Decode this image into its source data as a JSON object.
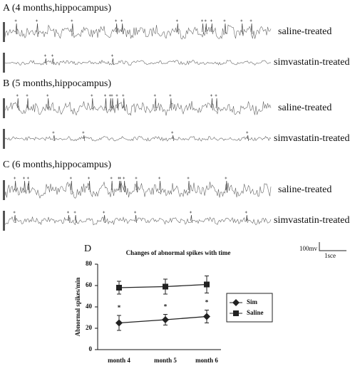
{
  "panels": [
    {
      "label": "A (4 months,hippocampus)",
      "traces": [
        "saline-treated",
        "simvastatin-treated"
      ]
    },
    {
      "label": "B (5 months,hippocampus)",
      "traces": [
        "saline-treated",
        "simvastatin-treated"
      ]
    },
    {
      "label": "C (6 months,hippocampus)",
      "traces": [
        "saline-treated",
        "simvastatin-treated"
      ]
    }
  ],
  "scale_bar": {
    "voltage": "100mv",
    "time": "1sce"
  },
  "chart_data": {
    "type": "line",
    "panel_label": "D",
    "title": "Changes of abnormal spikes with time",
    "y_label": "Abnormal spikes/min",
    "categories": [
      "month 4",
      "month 5",
      "month 6"
    ],
    "series": [
      {
        "name": "Sim",
        "color": "#222222",
        "marker": "diamond",
        "values": [
          25,
          28,
          31
        ],
        "errors": [
          7,
          5,
          6
        ]
      },
      {
        "name": "Saline",
        "color": "#222222",
        "marker": "square",
        "values": [
          58,
          59,
          61
        ],
        "errors": [
          6,
          7,
          8
        ]
      }
    ],
    "significance": [
      "*",
      "*",
      "*"
    ],
    "ylim": [
      0,
      80
    ],
    "yticks": [
      0,
      20,
      40,
      60,
      80
    ]
  }
}
